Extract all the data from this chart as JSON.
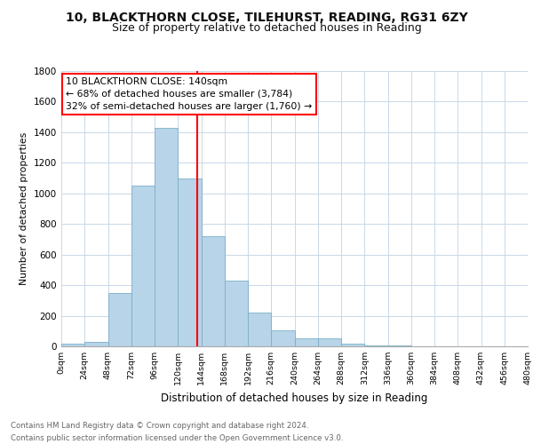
{
  "title": "10, BLACKTHORN CLOSE, TILEHURST, READING, RG31 6ZY",
  "subtitle": "Size of property relative to detached houses in Reading",
  "xlabel": "Distribution of detached houses by size in Reading",
  "ylabel": "Number of detached properties",
  "bar_edges": [
    0,
    24,
    48,
    72,
    96,
    120,
    144,
    168,
    192,
    216,
    240,
    264,
    288,
    312,
    336,
    360,
    384,
    408,
    432,
    456,
    480
  ],
  "bar_heights": [
    15,
    30,
    350,
    1050,
    1430,
    1100,
    720,
    430,
    220,
    105,
    55,
    50,
    20,
    5,
    3,
    2,
    1,
    1,
    0,
    0
  ],
  "bar_color": "#b8d4e8",
  "bar_edgecolor": "#7aafc8",
  "property_line_x": 140,
  "property_line_color": "red",
  "annotation_text": "10 BLACKTHORN CLOSE: 140sqm\n← 68% of detached houses are smaller (3,784)\n32% of semi-detached houses are larger (1,760) →",
  "annotation_box_edgecolor": "red",
  "annotation_box_facecolor": "white",
  "ylim": [
    0,
    1800
  ],
  "yticks": [
    0,
    200,
    400,
    600,
    800,
    1000,
    1200,
    1400,
    1600,
    1800
  ],
  "xtick_labels": [
    "0sqm",
    "24sqm",
    "48sqm",
    "72sqm",
    "96sqm",
    "120sqm",
    "144sqm",
    "168sqm",
    "192sqm",
    "216sqm",
    "240sqm",
    "264sqm",
    "288sqm",
    "312sqm",
    "336sqm",
    "360sqm",
    "384sqm",
    "408sqm",
    "432sqm",
    "456sqm",
    "480sqm"
  ],
  "footer_text": "Contains HM Land Registry data © Crown copyright and database right 2024.\nContains public sector information licensed under the Open Government Licence v3.0.",
  "title_fontsize": 10,
  "subtitle_fontsize": 9,
  "background_color": "#ffffff",
  "grid_color": "#c8d8e8"
}
